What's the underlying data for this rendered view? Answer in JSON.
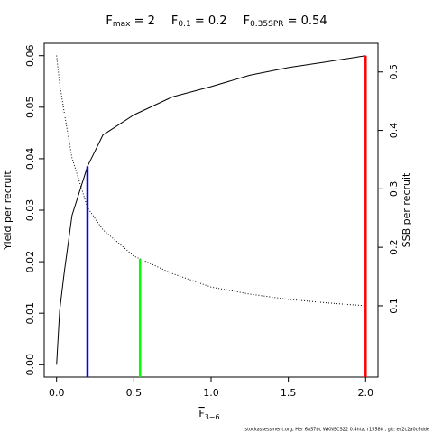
{
  "chart_data": {
    "type": "line",
    "title_parts": [
      {
        "base": "F",
        "sub": "max",
        "rest": " = 2"
      },
      {
        "base": "F",
        "sub": "0.1",
        "rest": " = 0.2"
      },
      {
        "base": "F",
        "sub": "0.35SPR",
        "rest": " = 0.54"
      }
    ],
    "xlabel": {
      "base": "F",
      "sub": "3−6"
    },
    "ylabel": "Yield per recruit",
    "y2label": "SSB per recruit",
    "footer": "stockassessment.org, Her 6aS7bc WKNSCS22 0.4hta, r15588 , git: ec2c2a0c6dde",
    "x": [
      0,
      0.02,
      0.05,
      0.1,
      0.2,
      0.3,
      0.5,
      0.75,
      1,
      1.25,
      1.5,
      1.75,
      2
    ],
    "series": [
      {
        "name": "Yield per recruit",
        "color": "#000000",
        "style": "solid",
        "axis": "y",
        "values": [
          0,
          0.0105,
          0.018,
          0.029,
          0.0385,
          0.0446,
          0.0485,
          0.052,
          0.054,
          0.0562,
          0.0577,
          0.0588,
          0.06
        ]
      },
      {
        "name": "SSB per recruit",
        "color": "#000000",
        "style": "dotted",
        "axis": "y2",
        "values": [
          0.528,
          0.48,
          0.43,
          0.353,
          0.268,
          0.23,
          0.185,
          0.155,
          0.132,
          0.12,
          0.111,
          0.105,
          0.1
        ]
      }
    ],
    "reference_lines": [
      {
        "x": 0.2,
        "y": 0.0385,
        "axis": "y",
        "color": "#0000ff"
      },
      {
        "x": 0.54,
        "y": 0.18,
        "axis": "y2",
        "color": "#00ff00"
      },
      {
        "x": 2,
        "y": 0.06,
        "axis": "y",
        "color": "#ff0000"
      }
    ],
    "xlim": [
      -0.08,
      2.08
    ],
    "xticks": [
      {
        "value": 0,
        "label": "0.0"
      },
      {
        "value": 0.5,
        "label": "0.5"
      },
      {
        "value": 1,
        "label": "1.0"
      },
      {
        "value": 1.5,
        "label": "1.5"
      },
      {
        "value": 2,
        "label": "2.0"
      }
    ],
    "ylim": [
      -0.0024,
      0.0624
    ],
    "yticks": [
      {
        "value": 0,
        "label": "0.00"
      },
      {
        "value": 0.01,
        "label": "0.01"
      },
      {
        "value": 0.02,
        "label": "0.02"
      },
      {
        "value": 0.03,
        "label": "0.03"
      },
      {
        "value": 0.04,
        "label": "0.04"
      },
      {
        "value": 0.05,
        "label": "0.05"
      },
      {
        "value": 0.06,
        "label": "0.06"
      }
    ],
    "y2lim": [
      -0.022,
      0.549
    ],
    "y2ticks": [
      0.1,
      0.2,
      0.3,
      0.4,
      0.5
    ]
  }
}
